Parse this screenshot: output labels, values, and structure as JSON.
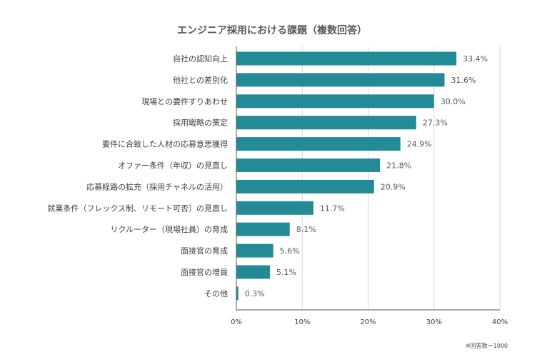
{
  "chart_data": {
    "type": "bar",
    "orientation": "horizontal",
    "title": "エンジニア採用における課題（複数回答）",
    "categories": [
      "自社の認知向上",
      "他社との差別化",
      "現場との要件すりあわせ",
      "採用戦略の策定",
      "要件に合致した人材の応募意思獲得",
      "オファー条件（年収）の見直し",
      "応募経路の拡充（採用チャネルの活用）",
      "就業条件（フレックス制、リモート可否）の見直し",
      "リクルーター（現場社員）の育成",
      "面接官の育成",
      "面接官の増員",
      "その他"
    ],
    "values": [
      33.4,
      31.6,
      30.0,
      27.3,
      24.9,
      21.8,
      20.9,
      11.7,
      8.1,
      5.6,
      5.1,
      0.3
    ],
    "value_labels": [
      "33.4%",
      "31.6%",
      "30.0%",
      "27.3%",
      "24.9%",
      "21.8%",
      "20.9%",
      "11.7%",
      "8.1%",
      "5.6%",
      "5.1%",
      "0.3%"
    ],
    "xlim": [
      0,
      40
    ],
    "xticks": [
      "0%",
      "10%",
      "20%",
      "30%",
      "40%"
    ],
    "grid": true,
    "bar_color": "#238b96",
    "note": "※回答数＝1000"
  }
}
